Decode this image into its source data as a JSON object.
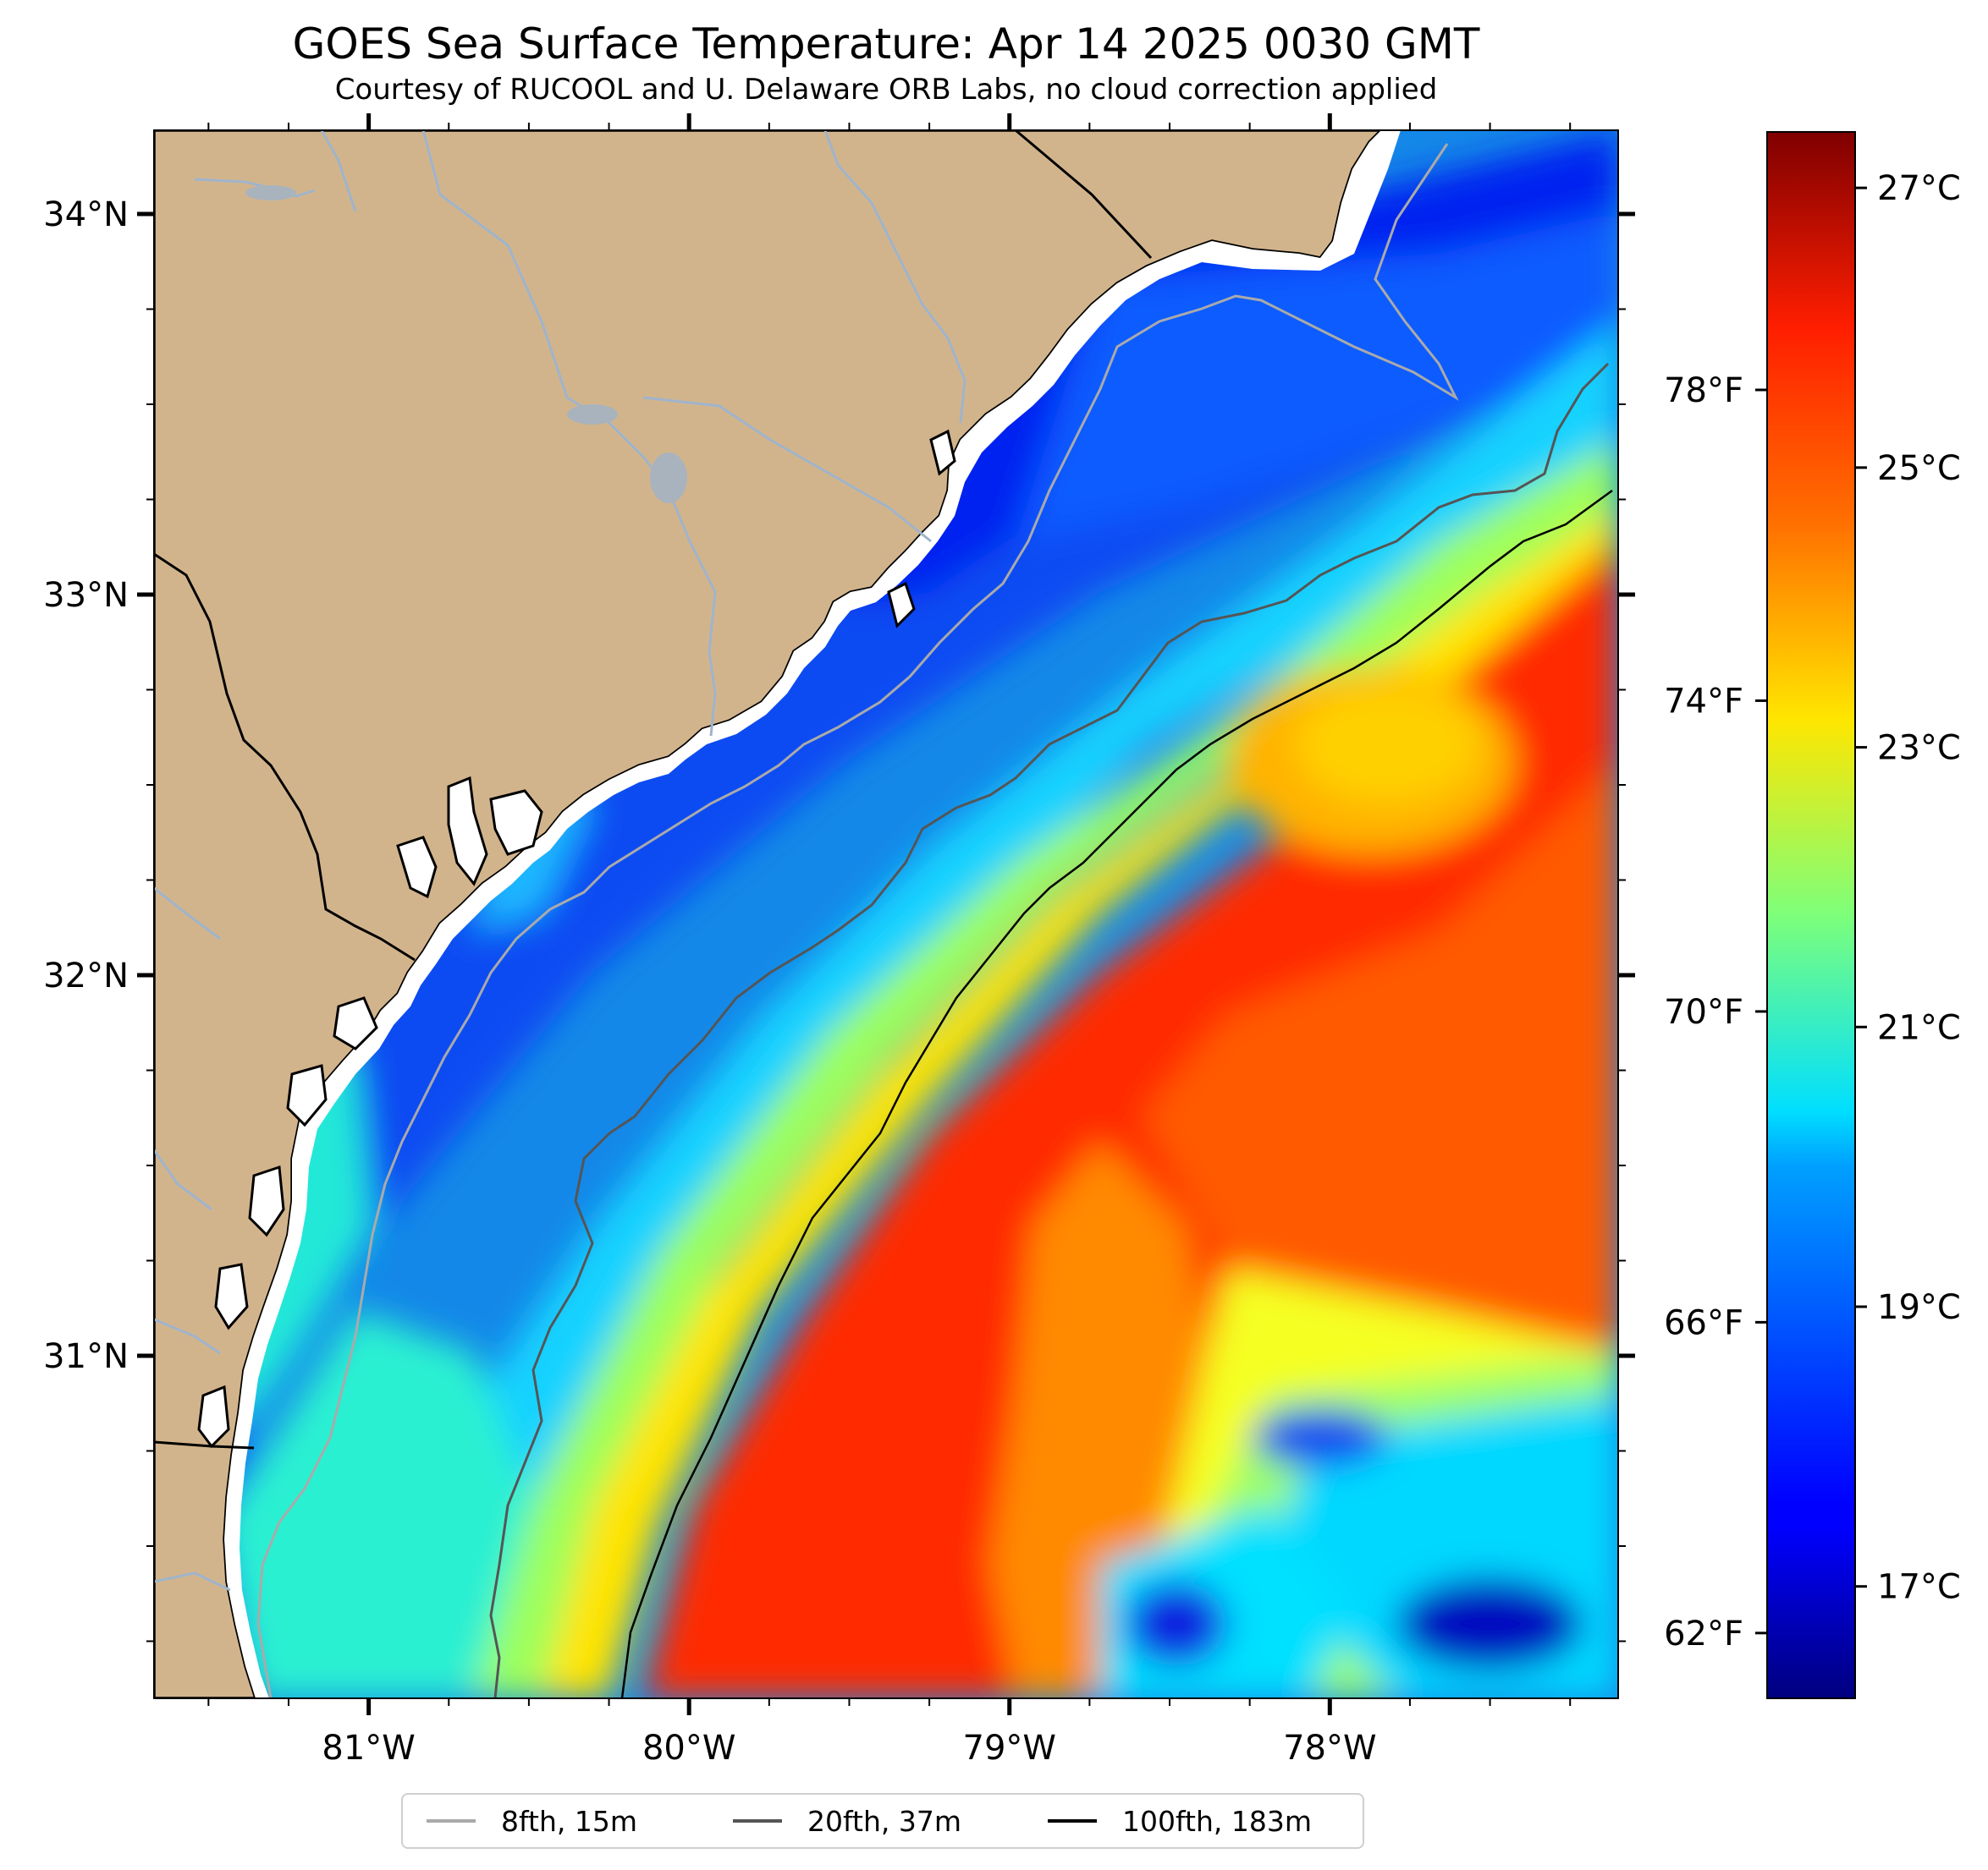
{
  "title": "GOES Sea Surface Temperature: Apr 14 2025 0030 GMT",
  "subtitle": "Courtesy of RUCOOL and U. Delaware ORB Labs, no cloud correction applied",
  "map": {
    "lat_range": [
      30.1,
      34.22
    ],
    "lon_range": [
      -81.67,
      -77.1
    ],
    "lat_ticks": [
      {
        "value": 34,
        "label": "34°N"
      },
      {
        "value": 33,
        "label": "33°N"
      },
      {
        "value": 32,
        "label": "32°N"
      },
      {
        "value": 31,
        "label": "31°N"
      }
    ],
    "lon_ticks": [
      {
        "value": -81,
        "label": "81°W"
      },
      {
        "value": -80,
        "label": "80°W"
      },
      {
        "value": -79,
        "label": "79°W"
      },
      {
        "value": -78,
        "label": "78°W"
      }
    ],
    "colors": {
      "land": "#d2b48c",
      "river": "#9fb4cc",
      "border": "#000000",
      "no_data": "#ffffff"
    }
  },
  "colorbar": {
    "colormap": "jet",
    "range_c": [
      16.2,
      27.4
    ],
    "celsius_ticks": [
      {
        "value": 27,
        "label": "27°C"
      },
      {
        "value": 25,
        "label": "25°C"
      },
      {
        "value": 23,
        "label": "23°C"
      },
      {
        "value": 21,
        "label": "21°C"
      },
      {
        "value": 19,
        "label": "19°C"
      },
      {
        "value": 17,
        "label": "17°C"
      }
    ],
    "fahrenheit_ticks": [
      {
        "value": 78,
        "label": "78°F"
      },
      {
        "value": 74,
        "label": "74°F"
      },
      {
        "value": 70,
        "label": "70°F"
      },
      {
        "value": 66,
        "label": "66°F"
      },
      {
        "value": 62,
        "label": "62°F"
      }
    ]
  },
  "legend": {
    "items": [
      {
        "label": "8fth, 15m",
        "color": "#aaaaaa"
      },
      {
        "label": "20fth, 37m",
        "color": "#555555"
      },
      {
        "label": "100fth, 183m",
        "color": "#000000"
      }
    ]
  }
}
